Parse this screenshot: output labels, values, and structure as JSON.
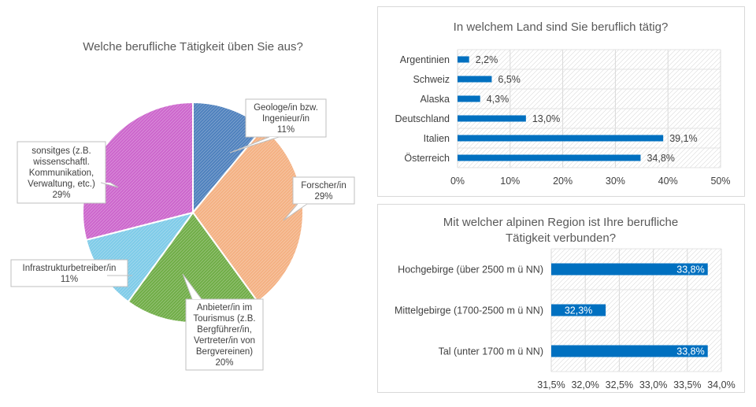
{
  "chart_data": [
    {
      "type": "pie",
      "title": "Welche berufliche Tätigkeit üben Sie aus?",
      "slices": [
        {
          "label_lines": [
            "Geologe/in bzw.",
            "Ingenieur/in"
          ],
          "value": 11,
          "value_label": "11%",
          "color": "#4f81bd"
        },
        {
          "label_lines": [
            "Forscher/in"
          ],
          "value": 29,
          "value_label": "29%",
          "color": "#f4b183"
        },
        {
          "label_lines": [
            "Anbieter/in im",
            "Tourismus (z.B.",
            "Bergführer/in,",
            "Vertreter/in von",
            "Bergvereinen)"
          ],
          "value": 20,
          "value_label": "20%",
          "color": "#70ad47"
        },
        {
          "label_lines": [
            "Infrastrukturbetreiber/in"
          ],
          "value": 11,
          "value_label": "11%",
          "color": "#7ecbe8"
        },
        {
          "label_lines": [
            "sonsitges (z.B.",
            "wissenschaftl.",
            "Kommunikation,",
            "Verwaltung, etc.)"
          ],
          "value": 29,
          "value_label": "29%",
          "color": "#cc66cc"
        }
      ]
    },
    {
      "type": "bar",
      "orientation": "horizontal",
      "title": "In welchem Land sind Sie beruflich tätig?",
      "categories": [
        "Argentinien",
        "Schweiz",
        "Alaska",
        "Deutschland",
        "Italien",
        "Österreich"
      ],
      "values": [
        2.2,
        6.5,
        4.3,
        13.0,
        39.1,
        34.8
      ],
      "value_labels": [
        "2,2%",
        "6,5%",
        "4,3%",
        "13,0%",
        "39,1%",
        "34,8%"
      ],
      "xlim": [
        0,
        50
      ],
      "ticks": [
        0,
        10,
        20,
        30,
        40,
        50
      ],
      "tick_labels": [
        "0%",
        "10%",
        "20%",
        "30%",
        "40%",
        "50%"
      ],
      "bar_color": "#0070c0",
      "grid": true
    },
    {
      "type": "bar",
      "orientation": "horizontal",
      "title": [
        "Mit welcher alpinen Region ist Ihre berufliche",
        "Tätigkeit verbunden?"
      ],
      "categories": [
        "Hochgebirge (über 2500 m ü NN)",
        "Mittelgebirge (1700-2500 m ü NN)",
        "Tal (unter 1700 m ü NN)"
      ],
      "values": [
        33.8,
        32.3,
        33.8
      ],
      "value_labels": [
        "33,8%",
        "32,3%",
        "33,8%"
      ],
      "xlim": [
        31.5,
        34.0
      ],
      "ticks": [
        31.5,
        32.0,
        32.5,
        33.0,
        33.5,
        34.0
      ],
      "tick_labels": [
        "31,5%",
        "32,0%",
        "32,5%",
        "33,0%",
        "33,5%",
        "34,0%"
      ],
      "bar_color": "#0070c0",
      "grid": true
    }
  ]
}
